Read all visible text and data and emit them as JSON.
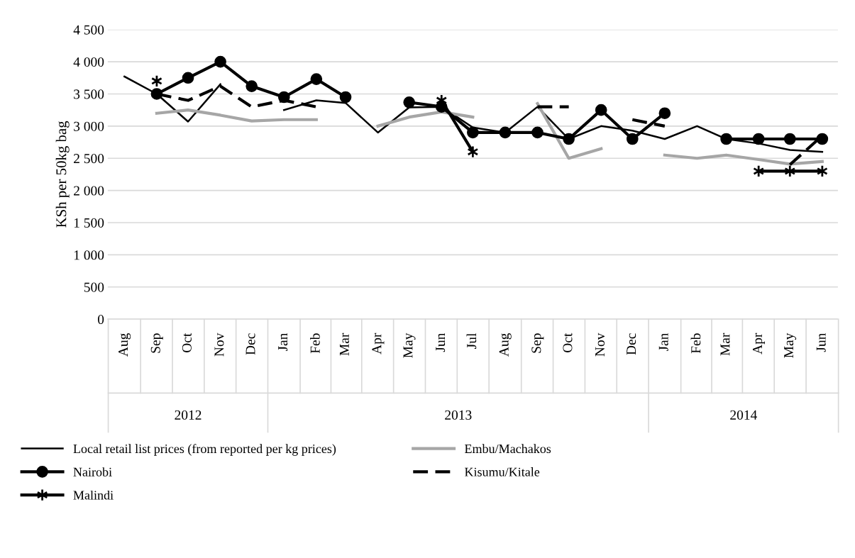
{
  "chart_data": {
    "type": "line",
    "ylabel": "KSh per 50kg bag",
    "x": [
      "2012-08",
      "2012-09",
      "2012-10",
      "2012-11",
      "2012-12",
      "2013-01",
      "2013-02",
      "2013-03",
      "2013-04",
      "2013-05",
      "2013-06",
      "2013-07",
      "2013-08",
      "2013-09",
      "2013-10",
      "2013-11",
      "2013-12",
      "2014-01",
      "2014-02",
      "2014-03",
      "2014-04",
      "2014-05",
      "2014-06"
    ],
    "xlim": [
      "2012-07-16",
      "2014-06-16"
    ],
    "xticks": [
      {
        "value": "2012-08",
        "label": "Aug"
      },
      {
        "value": "2012-09",
        "label": "Sep"
      },
      {
        "value": "2012-10",
        "label": "Oct"
      },
      {
        "value": "2012-11",
        "label": "Nov"
      },
      {
        "value": "2012-12",
        "label": "Dec"
      },
      {
        "value": "2013-01",
        "label": "Jan"
      },
      {
        "value": "2013-02",
        "label": "Feb"
      },
      {
        "value": "2013-03",
        "label": "Mar"
      },
      {
        "value": "2013-04",
        "label": "Apr"
      },
      {
        "value": "2013-05",
        "label": "May"
      },
      {
        "value": "2013-06",
        "label": "Jun"
      },
      {
        "value": "2013-07",
        "label": "Jul"
      },
      {
        "value": "2013-08",
        "label": "Aug"
      },
      {
        "value": "2013-09",
        "label": "Sep"
      },
      {
        "value": "2013-10",
        "label": "Oct"
      },
      {
        "value": "2013-11",
        "label": "Nov"
      },
      {
        "value": "2013-12",
        "label": "Dec"
      },
      {
        "value": "2014-01",
        "label": "Jan"
      },
      {
        "value": "2014-02",
        "label": "Feb"
      },
      {
        "value": "2014-03",
        "label": "Mar"
      },
      {
        "value": "2014-04",
        "label": "Apr"
      },
      {
        "value": "2014-05",
        "label": "May"
      },
      {
        "value": "2014-06",
        "label": "Jun"
      }
    ],
    "annotations": [
      "2012",
      "2013",
      "2014"
    ],
    "ylim": [
      0,
      4500
    ],
    "yticks": [
      {
        "value": 0,
        "label": "0"
      },
      {
        "value": 500,
        "label": "500"
      },
      {
        "value": 1000,
        "label": "1 000"
      },
      {
        "value": 1500,
        "label": "1 500"
      },
      {
        "value": 2000,
        "label": "2 000"
      },
      {
        "value": 2500,
        "label": "2 500"
      },
      {
        "value": 3000,
        "label": "3 000"
      },
      {
        "value": 3500,
        "label": "3 500"
      },
      {
        "value": 4000,
        "label": "4 000"
      },
      {
        "value": 4500,
        "label": "4 500"
      }
    ],
    "grid": "y",
    "legend": "bottom",
    "series": [
      {
        "name": "Local retail list prices (from reported per kg prices)",
        "color": "#000000",
        "marker": "none",
        "line_style": "solid",
        "values": [
          3770,
          3500,
          3070,
          3650,
          null,
          3250,
          3400,
          3360,
          2900,
          3290,
          3300,
          2980,
          2900,
          3300,
          2800,
          3000,
          2930,
          2800,
          3000,
          2800,
          2730,
          2630,
          2600
        ]
      },
      {
        "name": "Embu/Machakos",
        "color": "#a6a6a6",
        "marker": "none",
        "line_style": "solid",
        "values": [
          null,
          3200,
          3250,
          3170,
          3080,
          3100,
          3100,
          null,
          3000,
          3140,
          3220,
          3140,
          null,
          3350,
          2500,
          2650,
          null,
          2550,
          2500,
          2550,
          2480,
          2410,
          2450
        ]
      },
      {
        "name": "Nairobi",
        "color": "#000000",
        "marker": "circle",
        "line_style": "solid",
        "values": [
          null,
          3500,
          3750,
          4000,
          3620,
          3450,
          3730,
          3450,
          null,
          3370,
          3300,
          2900,
          2900,
          2900,
          2800,
          3250,
          2800,
          3200,
          null,
          2800,
          2800,
          2800,
          2800
        ]
      },
      {
        "name": "Kisumu/Kitale",
        "color": "#000000",
        "marker": "none",
        "line_style": "dashed",
        "values": [
          null,
          3500,
          3400,
          3620,
          3300,
          3400,
          3300,
          null,
          null,
          null,
          null,
          null,
          null,
          3300,
          3300,
          null,
          3100,
          3000,
          null,
          null,
          null,
          2400,
          2850
        ]
      },
      {
        "name": "Malindi",
        "color": "#000000",
        "marker": "cross",
        "line_style": "solid",
        "values": [
          null,
          3700,
          null,
          null,
          null,
          null,
          null,
          null,
          null,
          null,
          3400,
          2600,
          null,
          null,
          null,
          null,
          null,
          null,
          null,
          null,
          2300,
          2300,
          2300
        ]
      }
    ]
  }
}
